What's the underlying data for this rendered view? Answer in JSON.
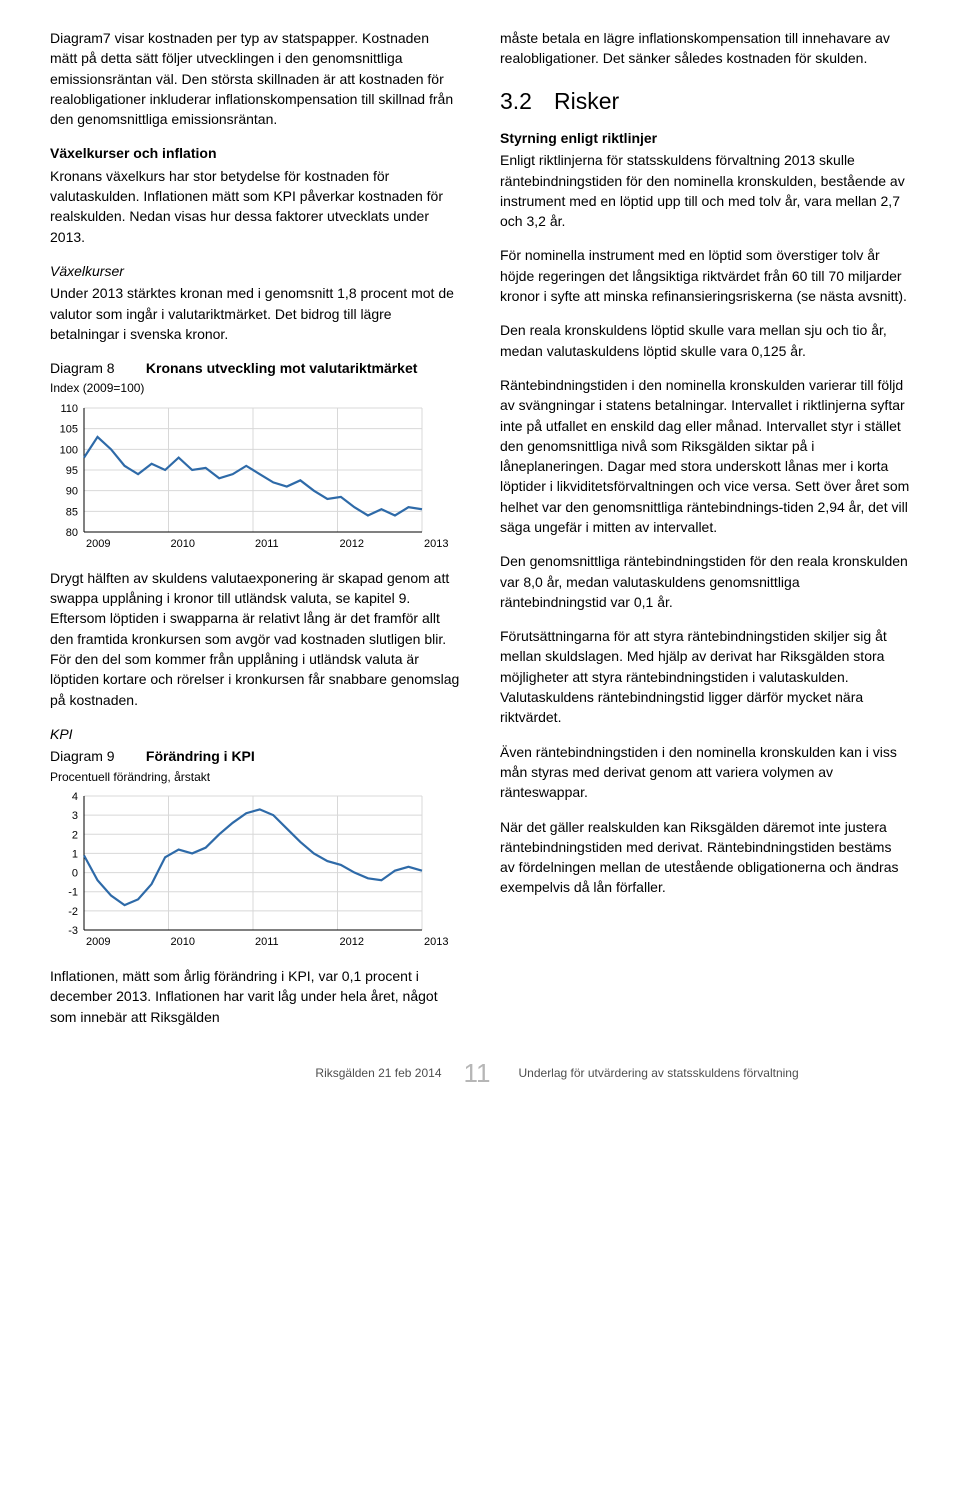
{
  "left": {
    "p1": "Diagram7 visar kostnaden per typ av statspapper. Kostnaden mätt på detta sätt följer utvecklingen i den genomsnittliga emissionsräntan väl. Den största skillnaden är att kostnaden för realobligationer inkluderar inflationskompensation till skillnad från den genomsnittliga emissionsräntan.",
    "h_vaxel": "Växelkurser och inflation",
    "p2": "Kronans växelkurs har stor betydelse för kostnaden för valutaskulden. Inflationen mätt som KPI påverkar kostnaden för realskulden. Nedan visas hur dessa faktorer utvecklats under 2013.",
    "h_vk": "Växelkurser",
    "p3": "Under 2013 stärktes kronan med i genomsnitt 1,8 procent mot de valutor som ingår i valutariktmärket. Det bidrog till lägre betalningar i svenska kronor.",
    "d8_label": "Diagram 8",
    "d8_title": "Kronans utveckling mot valutariktmärket",
    "d8_sub": "Index (2009=100)",
    "d8": {
      "yticks": [
        80,
        85,
        90,
        95,
        100,
        105,
        110
      ],
      "xticks": [
        "2009",
        "2010",
        "2011",
        "2012",
        "2013"
      ],
      "line_color": "#2e6aa8",
      "grid_color": "#d8d8d8",
      "axis_color": "#000000",
      "points": [
        [
          0,
          98
        ],
        [
          4,
          103
        ],
        [
          8,
          100
        ],
        [
          12,
          96
        ],
        [
          16,
          94
        ],
        [
          20,
          96.5
        ],
        [
          24,
          95
        ],
        [
          28,
          98
        ],
        [
          32,
          95
        ],
        [
          36,
          95.5
        ],
        [
          40,
          93
        ],
        [
          44,
          94
        ],
        [
          48,
          96
        ],
        [
          52,
          94
        ],
        [
          56,
          92
        ],
        [
          60,
          91
        ],
        [
          64,
          92.5
        ],
        [
          68,
          90
        ],
        [
          72,
          88
        ],
        [
          76,
          88.5
        ],
        [
          80,
          86
        ],
        [
          84,
          84
        ],
        [
          88,
          85.5
        ],
        [
          92,
          84
        ],
        [
          96,
          86
        ],
        [
          100,
          85.5
        ]
      ],
      "xmax": 100,
      "ylim": [
        80,
        110
      ]
    },
    "p4": "Drygt hälften av skuldens valutaexponering är skapad genom att swappa upplåning i kronor till utländsk valuta, se kapitel 9. Eftersom löptiden i swapparna är relativt lång är det framför allt den framtida kronkursen som avgör vad kostnaden slutligen blir. För den del som kommer från upplåning i utländsk valuta är löptiden kortare och rörelser i kronkursen får snabbare genomslag på kostnaden.",
    "h_kpi": "KPI",
    "d9_label": "Diagram 9",
    "d9_title": "Förändring i KPI",
    "d9_sub": "Procentuell förändring, årstakt",
    "d9": {
      "yticks": [
        -3,
        -2,
        -1,
        0,
        1,
        2,
        3,
        4
      ],
      "xticks": [
        "2009",
        "2010",
        "2011",
        "2012",
        "2013"
      ],
      "line_color": "#2e6aa8",
      "grid_color": "#d8d8d8",
      "axis_color": "#000000",
      "points": [
        [
          0,
          0.9
        ],
        [
          4,
          -0.4
        ],
        [
          8,
          -1.2
        ],
        [
          12,
          -1.7
        ],
        [
          16,
          -1.4
        ],
        [
          20,
          -0.6
        ],
        [
          24,
          0.8
        ],
        [
          28,
          1.2
        ],
        [
          32,
          1.0
        ],
        [
          36,
          1.3
        ],
        [
          40,
          2.0
        ],
        [
          44,
          2.6
        ],
        [
          48,
          3.1
        ],
        [
          52,
          3.3
        ],
        [
          56,
          3.0
        ],
        [
          60,
          2.3
        ],
        [
          64,
          1.6
        ],
        [
          68,
          1.0
        ],
        [
          72,
          0.6
        ],
        [
          76,
          0.4
        ],
        [
          80,
          0.0
        ],
        [
          84,
          -0.3
        ],
        [
          88,
          -0.4
        ],
        [
          92,
          0.1
        ],
        [
          96,
          0.3
        ],
        [
          100,
          0.1
        ]
      ],
      "xmax": 100,
      "ylim": [
        -3,
        4
      ]
    },
    "p5": "Inflationen, mätt som årlig förändring i KPI, var 0,1 procent i december 2013. Inflationen har varit låg under hela året, något som innebär att Riksgälden"
  },
  "right": {
    "p1": "måste betala en lägre inflationskompensation till innehavare av realobligationer. Det sänker således kostnaden för skulden.",
    "h_num": "3.2",
    "h_txt": "Risker",
    "h_styr": "Styrning enligt riktlinjer",
    "p2": "Enligt riktlinjerna för statsskuldens förvaltning 2013 skulle räntebindningstiden för den nominella kronskulden, bestående av instrument med en löptid upp till och med tolv år, vara mellan 2,7 och 3,2 år.",
    "p3": "För nominella instrument med en löptid som överstiger tolv år höjde regeringen det långsiktiga riktvärdet från 60 till 70 miljarder kronor i syfte att minska refinansieringsriskerna (se nästa avsnitt).",
    "p4": "Den reala kronskuldens löptid skulle vara mellan sju och tio år, medan valutaskuldens löptid skulle vara 0,125 år.",
    "p5": "Räntebindningstiden i den nominella kronskulden varierar till följd av svängningar i statens betalningar. Intervallet i riktlinjerna syftar inte på utfallet en enskild dag eller månad. Intervallet styr i stället den genomsnittliga nivå som Riksgälden siktar på i låneplaneringen. Dagar med stora underskott lånas mer i korta löptider i likviditetsförvaltningen och vice versa. Sett över året som helhet var den genomsnittliga räntebindnings-tiden 2,94 år, det vill säga ungefär i mitten av intervallet.",
    "p6": "Den genomsnittliga räntebindningstiden för den reala kronskulden var 8,0 år, medan valutaskuldens genomsnittliga räntebindningstid var 0,1 år.",
    "p7": "Förutsättningarna för att styra räntebindningstiden skiljer sig åt mellan skuldslagen. Med hjälp av derivat har Riksgälden stora möjligheter att styra räntebindningstiden i valutaskulden. Valutaskuldens räntebindningstid ligger därför mycket nära riktvärdet.",
    "p8": "Även räntebindningstiden i den nominella kronskulden kan i viss mån styras med derivat genom att variera volymen av ränteswappar.",
    "p9": "När det gäller realskulden kan Riksgälden däremot inte justera räntebindningstiden med derivat. Räntebindningstiden bestäms av fördelningen mellan de utestående obligationerna och ändras exempelvis då lån förfaller."
  },
  "footer": {
    "left": "Riksgälden 21 feb 2014",
    "page": "11",
    "right": "Underlag för utvärdering av statsskuldens förvaltning"
  }
}
